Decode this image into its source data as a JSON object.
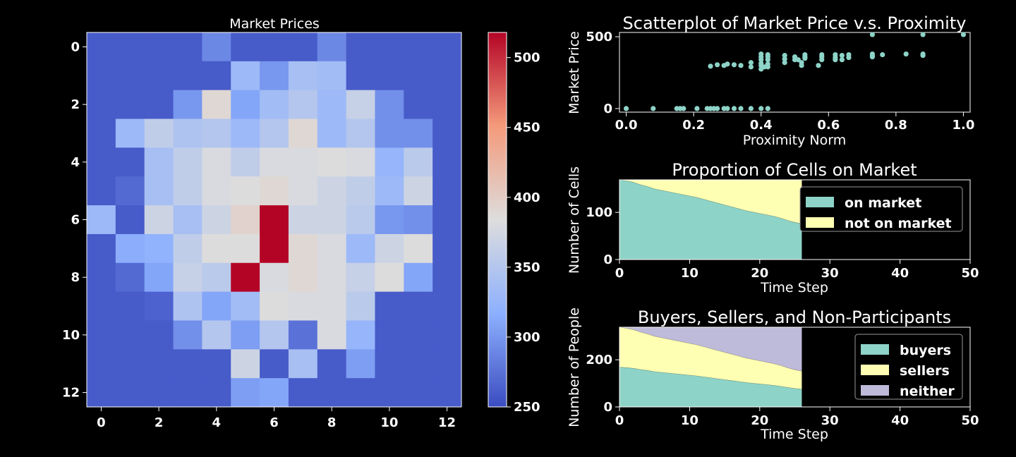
{
  "chart_data": [
    {
      "type": "heatmap",
      "title": "Market Prices",
      "x_ticks": [
        0,
        2,
        4,
        6,
        8,
        10,
        12
      ],
      "y_ticks": [
        0,
        2,
        4,
        6,
        8,
        10,
        12
      ],
      "colorbar": {
        "cmap": "coolwarm",
        "range": [
          250,
          518
        ],
        "ticks": [
          250,
          300,
          350,
          400,
          450,
          500
        ]
      },
      "values": [
        [
          260,
          260,
          260,
          260,
          290,
          260,
          260,
          260,
          290,
          260,
          260,
          260,
          260
        ],
        [
          260,
          260,
          260,
          260,
          260,
          330,
          300,
          340,
          335,
          260,
          260,
          260,
          260
        ],
        [
          260,
          260,
          260,
          300,
          390,
          310,
          335,
          350,
          330,
          365,
          295,
          260,
          260
        ],
        [
          260,
          330,
          360,
          345,
          350,
          330,
          350,
          390,
          330,
          350,
          295,
          295,
          260
        ],
        [
          260,
          260,
          340,
          360,
          380,
          360,
          380,
          380,
          385,
          380,
          325,
          355,
          260
        ],
        [
          260,
          270,
          340,
          360,
          380,
          385,
          390,
          380,
          370,
          360,
          330,
          370,
          260
        ],
        [
          330,
          260,
          370,
          340,
          370,
          395,
          518,
          370,
          370,
          355,
          300,
          295,
          260
        ],
        [
          260,
          315,
          320,
          360,
          385,
          385,
          518,
          390,
          380,
          330,
          370,
          385,
          260
        ],
        [
          260,
          270,
          310,
          365,
          355,
          518,
          380,
          390,
          380,
          365,
          385,
          310,
          260
        ],
        [
          260,
          260,
          265,
          345,
          310,
          335,
          385,
          380,
          380,
          355,
          260,
          260,
          260
        ],
        [
          260,
          260,
          260,
          295,
          350,
          305,
          350,
          275,
          380,
          325,
          260,
          260,
          260
        ],
        [
          260,
          260,
          260,
          260,
          260,
          370,
          260,
          340,
          260,
          305,
          260,
          260,
          260
        ],
        [
          260,
          260,
          260,
          260,
          260,
          305,
          310,
          260,
          260,
          260,
          260,
          260,
          260
        ]
      ]
    },
    {
      "type": "scatter",
      "title": "Scatterplot of Market Price v.s. Proximity",
      "xlabel": "Proximity Norm",
      "ylabel": "Market Price",
      "xlim": [
        -0.02,
        1.02
      ],
      "ylim": [
        -25,
        530
      ],
      "x_ticks": [
        "0.0",
        "0.2",
        "0.4",
        "0.6",
        "0.8",
        "1.0"
      ],
      "y_ticks": [
        0,
        500
      ],
      "x": [
        0.0,
        0.08,
        0.15,
        0.16,
        0.17,
        0.21,
        0.24,
        0.25,
        0.26,
        0.27,
        0.29,
        0.3,
        0.32,
        0.34,
        0.37,
        0.4,
        0.42,
        0.25,
        0.27,
        0.29,
        0.3,
        0.32,
        0.34,
        0.37,
        0.37,
        0.4,
        0.4,
        0.4,
        0.4,
        0.4,
        0.4,
        0.41,
        0.42,
        0.42,
        0.42,
        0.42,
        0.42,
        0.47,
        0.47,
        0.47,
        0.5,
        0.5,
        0.51,
        0.52,
        0.52,
        0.53,
        0.53,
        0.53,
        0.57,
        0.58,
        0.58,
        0.58,
        0.62,
        0.62,
        0.62,
        0.64,
        0.64,
        0.66,
        0.66,
        0.73,
        0.73,
        0.73,
        0.76,
        0.83,
        0.88,
        0.88,
        0.88,
        1.0,
        0.73
      ],
      "y": [
        0,
        0,
        0,
        0,
        0,
        0,
        0,
        0,
        0,
        0,
        0,
        0,
        0,
        0,
        0,
        0,
        0,
        295,
        305,
        300,
        310,
        305,
        300,
        290,
        320,
        275,
        300,
        315,
        340,
        360,
        380,
        290,
        290,
        310,
        340,
        360,
        375,
        320,
        345,
        370,
        340,
        360,
        340,
        300,
        320,
        350,
        360,
        375,
        300,
        340,
        360,
        375,
        340,
        355,
        375,
        340,
        370,
        355,
        375,
        360,
        370,
        380,
        375,
        380,
        370,
        380,
        515,
        515,
        515
      ]
    },
    {
      "type": "area",
      "title": "Proportion of Cells on Market",
      "xlabel": "Time Step",
      "ylabel": "Number of Cells",
      "xlim": [
        0,
        50
      ],
      "ylim": [
        0,
        169
      ],
      "x_ticks": [
        0,
        10,
        20,
        30,
        40,
        50
      ],
      "y_ticks": [
        0,
        100
      ],
      "legend": "top-right",
      "x": [
        0,
        1,
        2,
        3,
        4,
        5,
        6,
        7,
        8,
        9,
        10,
        11,
        12,
        13,
        14,
        15,
        16,
        17,
        18,
        19,
        20,
        21,
        22,
        23,
        24,
        25,
        26
      ],
      "series": [
        {
          "name": "on market",
          "color": "#8dd3c7",
          "values": [
            169,
            167,
            164,
            159,
            155,
            150,
            147,
            144,
            141,
            138,
            135,
            132,
            128,
            124,
            120,
            116,
            112,
            108,
            104,
            101,
            98,
            95,
            92,
            88,
            83,
            79,
            76
          ]
        },
        {
          "name": "not on market",
          "color": "#ffffb3",
          "values": [
            0,
            2,
            5,
            10,
            14,
            19,
            22,
            25,
            28,
            31,
            34,
            37,
            41,
            45,
            49,
            53,
            57,
            61,
            65,
            68,
            71,
            74,
            77,
            81,
            86,
            90,
            93
          ]
        }
      ]
    },
    {
      "type": "area",
      "title": "Buyers, Sellers, and Non-Participants",
      "xlabel": "Time Step",
      "ylabel": "Number of People",
      "xlim": [
        0,
        50
      ],
      "ylim": [
        0,
        338
      ],
      "x_ticks": [
        0,
        10,
        20,
        30,
        40,
        50
      ],
      "y_ticks": [
        0,
        200
      ],
      "legend": "top-right",
      "x": [
        0,
        1,
        2,
        3,
        4,
        5,
        6,
        7,
        8,
        9,
        10,
        11,
        12,
        13,
        14,
        15,
        16,
        17,
        18,
        19,
        20,
        21,
        22,
        23,
        24,
        25,
        26
      ],
      "series": [
        {
          "name": "buyers",
          "color": "#8dd3c7",
          "values": [
            169,
            167,
            164,
            159,
            155,
            150,
            147,
            144,
            141,
            138,
            135,
            132,
            128,
            124,
            120,
            116,
            112,
            108,
            104,
            101,
            98,
            95,
            92,
            88,
            83,
            79,
            76
          ]
        },
        {
          "name": "sellers",
          "color": "#ffffb3",
          "values": [
            169,
            167,
            164,
            159,
            155,
            150,
            147,
            144,
            141,
            138,
            135,
            132,
            128,
            124,
            120,
            116,
            112,
            108,
            104,
            101,
            98,
            95,
            92,
            88,
            83,
            79,
            76
          ]
        },
        {
          "name": "neither",
          "color": "#bebada",
          "values": [
            0,
            4,
            10,
            20,
            28,
            38,
            44,
            50,
            56,
            62,
            68,
            74,
            82,
            90,
            98,
            106,
            114,
            122,
            130,
            136,
            142,
            148,
            154,
            162,
            172,
            180,
            186
          ]
        }
      ]
    }
  ]
}
